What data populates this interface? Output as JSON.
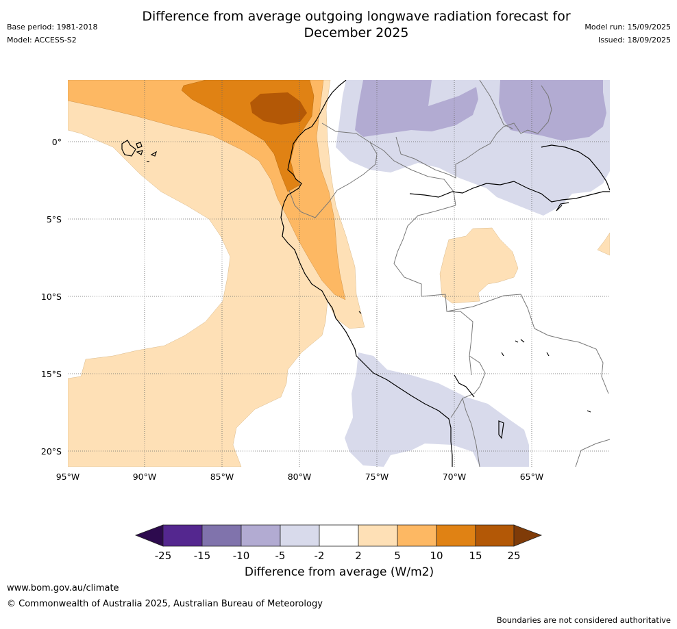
{
  "header": {
    "title_line1": "Difference from average outgoing longwave radiation forecast for",
    "title_line2": "December 2025",
    "base_period": "Base period: 1981-2018",
    "model": "Model: ACCESS-S2",
    "model_run": "Model run: 15/09/2025",
    "issued": "Issued: 18/09/2025"
  },
  "map": {
    "lat_ticks": [
      "0°",
      "5°S",
      "10°S",
      "15°S",
      "20°S"
    ],
    "lon_ticks": [
      "95°W",
      "90°W",
      "85°W",
      "80°W",
      "75°W",
      "70°W",
      "65°W"
    ]
  },
  "legend": {
    "label": "Difference from average (W/m2)",
    "ticks": [
      "-25",
      "-15",
      "-10",
      "-5",
      "-2",
      "2",
      "5",
      "10",
      "15",
      "25"
    ],
    "colors": {
      "below_-25": "#2d0a4e",
      "-25_-15": "#54278f",
      "-15_-10": "#8073ac",
      "-10_-5": "#b2abd2",
      "-5_-2": "#d8daeb",
      "-2_2": "#ffffff",
      "2_5": "#fee0b6",
      "5_10": "#fdb863",
      "10_15": "#e08214",
      "15_25": "#b35806",
      "above_25": "#7f3b08"
    }
  },
  "footer": {
    "url": "www.bom.gov.au/climate",
    "copyright": "© Commonwealth of Australia 2025, Australian Bureau of Meteorology",
    "disclaimer": "Boundaries are not considered authoritative"
  }
}
